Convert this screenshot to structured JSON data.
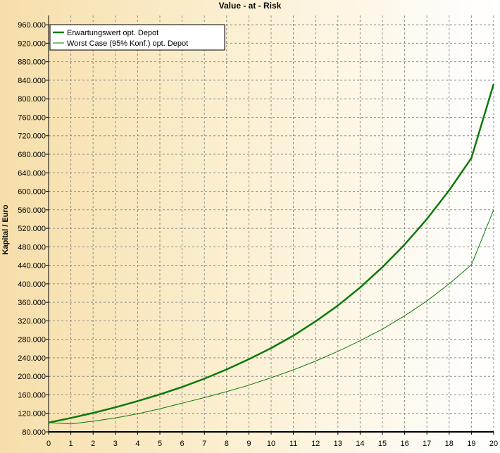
{
  "chart_data": {
    "type": "line",
    "title": "Value - at - Risk",
    "xlabel": "",
    "ylabel": "Kapital / Euro",
    "x": [
      0,
      1,
      2,
      3,
      4,
      5,
      6,
      7,
      8,
      9,
      10,
      11,
      12,
      13,
      14,
      15,
      16,
      17,
      18,
      19,
      20
    ],
    "xlim": [
      0,
      20
    ],
    "ylim": [
      80000,
      980000
    ],
    "x_ticks": [
      "0",
      "1",
      "2",
      "3",
      "4",
      "5",
      "6",
      "7",
      "8",
      "9",
      "10",
      "11",
      "12",
      "13",
      "14",
      "15",
      "16",
      "17",
      "18",
      "19",
      "20"
    ],
    "y_ticks": [
      "80.000",
      "120.000",
      "160.000",
      "200.000",
      "240.000",
      "280.000",
      "320.000",
      "360.000",
      "400.000",
      "440.000",
      "480.000",
      "520.000",
      "560.000",
      "600.000",
      "640.000",
      "680.000",
      "720.000",
      "760.000",
      "800.000",
      "840.000",
      "880.000",
      "920.000",
      "960.000"
    ],
    "y_tick_values": [
      80000,
      120000,
      160000,
      200000,
      240000,
      280000,
      320000,
      360000,
      400000,
      440000,
      480000,
      520000,
      560000,
      600000,
      640000,
      680000,
      720000,
      760000,
      800000,
      840000,
      880000,
      920000,
      960000
    ],
    "grid": true,
    "legend_position": "top-left",
    "series": [
      {
        "name": "Erwartungswert opt. Depot",
        "color": "#0a7a0a",
        "width": "thick",
        "values": [
          100000,
          110000,
          121000,
          133000,
          146500,
          161000,
          177000,
          195000,
          215000,
          237000,
          261000,
          288000,
          319000,
          353000,
          392000,
          436000,
          485000,
          540000,
          602000,
          672000,
          832000
        ]
      },
      {
        "name": "Worst Case (95% Konf.) opt. Depot",
        "color": "#0a7a0a",
        "width": "thin",
        "values": [
          100000,
          97000,
          103000,
          110000,
          119000,
          130000,
          142000,
          154000,
          167000,
          181000,
          197000,
          214000,
          233000,
          254000,
          277000,
          302000,
          331000,
          363000,
          400000,
          441000,
          560000
        ]
      }
    ]
  }
}
